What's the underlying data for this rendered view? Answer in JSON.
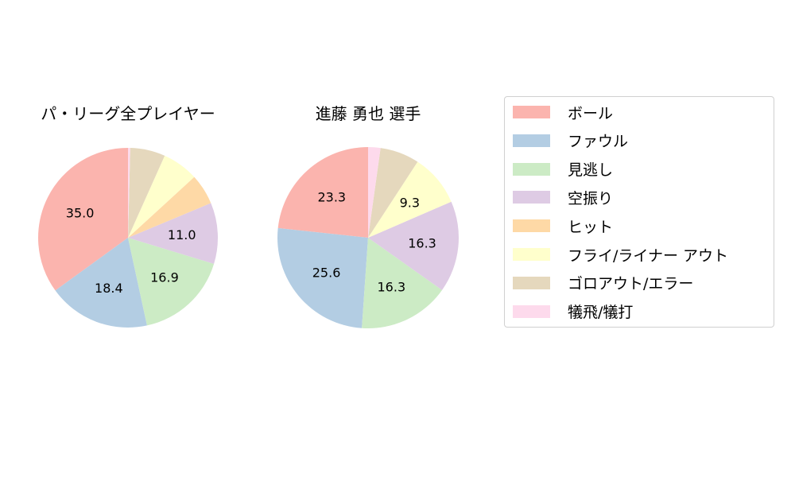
{
  "chart_data": [
    {
      "type": "pie",
      "title": "パ・リーグ全プレイヤー",
      "categories": [
        "ボール",
        "ファウル",
        "見逃し",
        "空振り",
        "ヒット",
        "フライ/ライナー アウト",
        "ゴロアウト/エラー",
        "犠飛/犠打"
      ],
      "values": [
        35.0,
        18.4,
        16.9,
        11.0,
        5.5,
        6.5,
        6.3,
        0.4
      ],
      "labels_shown": [
        "35.0",
        "18.4",
        "16.9",
        "11.0",
        "",
        "",
        "",
        ""
      ],
      "start_angle": 90,
      "direction": "counterclockwise"
    },
    {
      "type": "pie",
      "title": "進藤 勇也  選手",
      "categories": [
        "ボール",
        "ファウル",
        "見逃し",
        "空振り",
        "ヒット",
        "フライ/ライナー アウト",
        "ゴロアウト/エラー",
        "犠飛/犠打"
      ],
      "values": [
        23.3,
        25.6,
        16.3,
        16.3,
        0.0,
        9.3,
        7.0,
        2.2
      ],
      "labels_shown": [
        "23.3",
        "25.6",
        "16.3",
        "16.3",
        "",
        "9.3",
        "",
        ""
      ],
      "start_angle": 90,
      "direction": "counterclockwise"
    }
  ],
  "legend": {
    "position": "right",
    "items": [
      {
        "label": "ボール",
        "color": "#fbb4ae"
      },
      {
        "label": "ファウル",
        "color": "#b3cde3"
      },
      {
        "label": "見逃し",
        "color": "#ccebc5"
      },
      {
        "label": "空振り",
        "color": "#decbe4"
      },
      {
        "label": "ヒット",
        "color": "#fed9a6"
      },
      {
        "label": "フライ/ライナー アウト",
        "color": "#ffffcc"
      },
      {
        "label": "ゴロアウト/エラー",
        "color": "#e5d8bd"
      },
      {
        "label": "犠飛/犠打",
        "color": "#fddaec"
      }
    ]
  },
  "titles": {
    "left": "パ・リーグ全プレイヤー",
    "right": "進藤 勇也  選手"
  }
}
